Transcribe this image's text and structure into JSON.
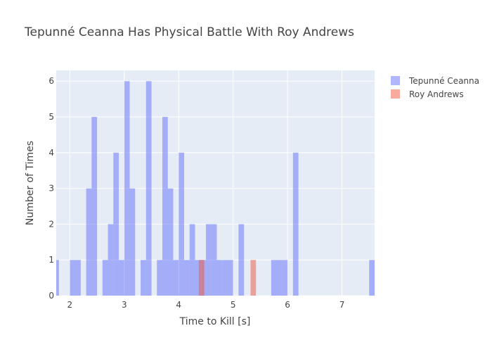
{
  "chart_data": {
    "type": "bar",
    "title": "Tepunné Ceanna Has Physical Battle With Roy Andrews",
    "xlabel": "Time to Kill [s]",
    "ylabel": "Number of Times",
    "xlim": [
      1.75,
      7.6
    ],
    "ylim": [
      0,
      6.3
    ],
    "xticks": [
      2,
      3,
      4,
      5,
      6,
      7
    ],
    "yticks": [
      0,
      1,
      2,
      3,
      4,
      5,
      6
    ],
    "bin_width": 0.1,
    "grid": true,
    "barmode": "overlay",
    "legend_position": "top-right",
    "series": [
      {
        "name": "Tepunné Ceanna",
        "color": "#636efa",
        "opacity": 0.5,
        "bins": [
          [
            1.75,
            1
          ],
          [
            2.05,
            1
          ],
          [
            2.15,
            1
          ],
          [
            2.35,
            3
          ],
          [
            2.45,
            5
          ],
          [
            2.65,
            1
          ],
          [
            2.75,
            2
          ],
          [
            2.85,
            4
          ],
          [
            2.95,
            1
          ],
          [
            3.05,
            6
          ],
          [
            3.15,
            3
          ],
          [
            3.35,
            1
          ],
          [
            3.45,
            6
          ],
          [
            3.65,
            1
          ],
          [
            3.75,
            5
          ],
          [
            3.85,
            3
          ],
          [
            3.95,
            1
          ],
          [
            4.05,
            4
          ],
          [
            4.15,
            1
          ],
          [
            4.25,
            2
          ],
          [
            4.35,
            1
          ],
          [
            4.45,
            1
          ],
          [
            4.55,
            2
          ],
          [
            4.65,
            2
          ],
          [
            4.75,
            1
          ],
          [
            4.85,
            1
          ],
          [
            4.95,
            1
          ],
          [
            5.15,
            2
          ],
          [
            5.75,
            1
          ],
          [
            5.85,
            1
          ],
          [
            5.95,
            1
          ],
          [
            6.15,
            4
          ],
          [
            7.55,
            1
          ]
        ]
      },
      {
        "name": "Roy Andrews",
        "color": "#ef553b",
        "opacity": 0.5,
        "bins": [
          [
            4.42,
            1
          ],
          [
            5.37,
            1
          ]
        ]
      }
    ]
  }
}
